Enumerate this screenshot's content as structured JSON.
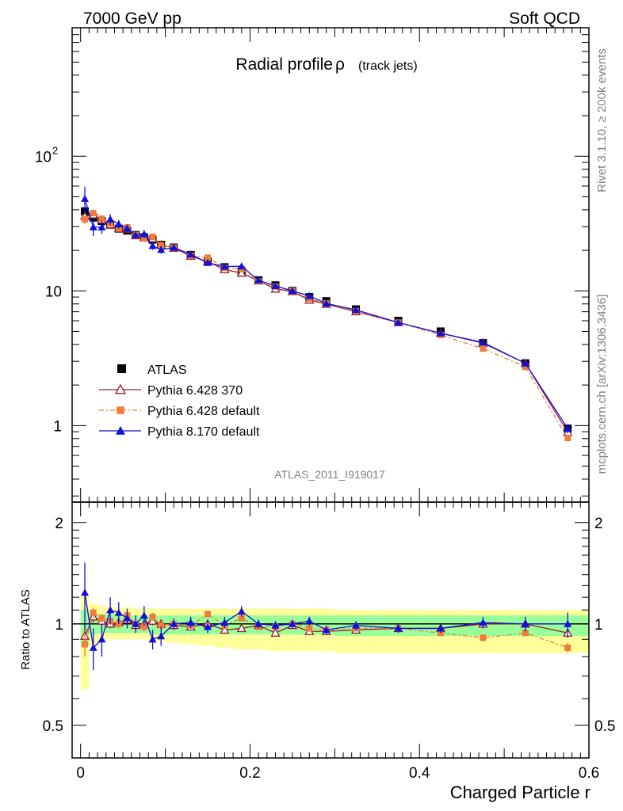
{
  "header": {
    "left": "7000 GeV pp",
    "right": "Soft QCD"
  },
  "side": {
    "top": "Rivet 3.1.10, ≥ 200k events",
    "bottom": "mcplots.cern.ch [arXiv:1306.3436]"
  },
  "chart_data": {
    "type": "line",
    "title": "Radial profile",
    "title_symbol": "ρ",
    "title_suffix": "(track jets)",
    "analysis_label": "ATLAS_2011_I919017",
    "xlabel": "Charged Particle r",
    "ylabel_ratio": "Ratio to ATLAS",
    "xlim": [
      -0.01,
      0.6
    ],
    "ylim_main": [
      0.27,
      900
    ],
    "ylim_ratio": [
      0.4,
      2.3
    ],
    "log_y_main": true,
    "log_y_ratio": true,
    "x_ticks": [
      "0",
      "0.2",
      "0.4",
      "0.6"
    ],
    "y_ticks_main": [
      "1",
      "10",
      "10^2"
    ],
    "y_ticks_ratio": [
      "0.5",
      "1",
      "2"
    ],
    "legend_position": "bottom-left",
    "x": [
      0.005,
      0.015,
      0.025,
      0.035,
      0.045,
      0.055,
      0.065,
      0.075,
      0.085,
      0.095,
      0.11,
      0.13,
      0.15,
      0.17,
      0.19,
      0.21,
      0.23,
      0.25,
      0.27,
      0.29,
      0.325,
      0.375,
      0.425,
      0.475,
      0.525,
      0.575
    ],
    "data": {
      "name": "ATLAS",
      "values": [
        39,
        35,
        33,
        31,
        29,
        28,
        26,
        25,
        24,
        22,
        21,
        18.5,
        16.5,
        15,
        14,
        12,
        11,
        10,
        9,
        8.4,
        7.3,
        6.0,
        5.0,
        4.1,
        2.9,
        0.95
      ],
      "yellow_band": [
        [
          0.64,
          1.22
        ],
        [
          0.86,
          1.15
        ],
        [
          0.88,
          1.13
        ],
        [
          0.9,
          1.12
        ],
        [
          0.9,
          1.12
        ],
        [
          0.9,
          1.12
        ],
        [
          0.9,
          1.11
        ],
        [
          0.9,
          1.11
        ],
        [
          0.89,
          1.11
        ],
        [
          0.89,
          1.11
        ],
        [
          0.88,
          1.11
        ],
        [
          0.87,
          1.11
        ],
        [
          0.86,
          1.11
        ],
        [
          0.85,
          1.11
        ],
        [
          0.84,
          1.11
        ],
        [
          0.84,
          1.11
        ],
        [
          0.83,
          1.11
        ],
        [
          0.83,
          1.11
        ],
        [
          0.83,
          1.11
        ],
        [
          0.83,
          1.11
        ],
        [
          0.82,
          1.1
        ],
        [
          0.82,
          1.1
        ],
        [
          0.82,
          1.1
        ],
        [
          0.82,
          1.1
        ],
        [
          0.82,
          1.1
        ],
        [
          0.82,
          1.1
        ]
      ],
      "green_band": [
        [
          0.86,
          1.1
        ],
        [
          0.93,
          1.07
        ],
        [
          0.94,
          1.07
        ],
        [
          0.94,
          1.07
        ],
        [
          0.94,
          1.07
        ],
        [
          0.94,
          1.07
        ],
        [
          0.94,
          1.06
        ],
        [
          0.94,
          1.06
        ],
        [
          0.93,
          1.06
        ],
        [
          0.93,
          1.06
        ],
        [
          0.93,
          1.06
        ],
        [
          0.93,
          1.06
        ],
        [
          0.93,
          1.06
        ],
        [
          0.93,
          1.06
        ],
        [
          0.93,
          1.06
        ],
        [
          0.93,
          1.06
        ],
        [
          0.93,
          1.06
        ],
        [
          0.93,
          1.06
        ],
        [
          0.93,
          1.06
        ],
        [
          0.93,
          1.06
        ],
        [
          0.92,
          1.06
        ],
        [
          0.92,
          1.06
        ],
        [
          0.92,
          1.06
        ],
        [
          0.92,
          1.06
        ],
        [
          0.92,
          1.06
        ],
        [
          0.92,
          1.06
        ]
      ]
    },
    "series": [
      {
        "name": "Pythia 6.428 370",
        "color": "#9a1b2b",
        "marker": "open-triangle",
        "ratio": [
          0.92,
          1.05,
          1.02,
          1.0,
          1.01,
          1.03,
          0.99,
          1.0,
          1.02,
          1.0,
          0.99,
          0.98,
          1.0,
          0.96,
          0.97,
          0.99,
          0.94,
          0.99,
          0.95,
          0.95,
          0.96,
          0.97,
          0.97,
          1.0,
          1.0,
          0.94
        ],
        "ratio_err": [
          0.06,
          0.04,
          0.03,
          0.03,
          0.03,
          0.03,
          0.03,
          0.03,
          0.03,
          0.03,
          0.02,
          0.02,
          0.02,
          0.02,
          0.02,
          0.02,
          0.02,
          0.02,
          0.02,
          0.02,
          0.02,
          0.02,
          0.02,
          0.02,
          0.02,
          0.03
        ]
      },
      {
        "name": "Pythia 6.428 default",
        "color": "#f07c3a",
        "marker": "filled-square",
        "ratio": [
          0.87,
          1.08,
          1.04,
          1.02,
          1.0,
          1.06,
          1.0,
          0.98,
          1.05,
          0.99,
          1.0,
          0.99,
          1.07,
          0.99,
          1.04,
          0.98,
          0.98,
          1.0,
          0.97,
          0.96,
          0.97,
          0.97,
          0.94,
          0.91,
          0.94,
          0.85
        ],
        "ratio_err": [
          0.07,
          0.04,
          0.03,
          0.03,
          0.03,
          0.03,
          0.03,
          0.03,
          0.03,
          0.03,
          0.02,
          0.02,
          0.02,
          0.02,
          0.02,
          0.02,
          0.02,
          0.02,
          0.02,
          0.02,
          0.02,
          0.02,
          0.02,
          0.02,
          0.02,
          0.03
        ]
      },
      {
        "name": "Pythia 8.170 default",
        "color": "#1010d8",
        "marker": "filled-triangle",
        "ratio": [
          1.24,
          0.85,
          0.9,
          1.1,
          1.08,
          1.04,
          1.0,
          1.06,
          0.9,
          0.92,
          1.0,
          1.01,
          0.98,
          1.01,
          1.09,
          1.0,
          0.99,
          1.0,
          1.02,
          0.96,
          0.99,
          0.97,
          0.97,
          1.01,
          1.0,
          1.0
        ],
        "ratio_err": [
          0.28,
          0.12,
          0.1,
          0.1,
          0.08,
          0.07,
          0.06,
          0.07,
          0.06,
          0.06,
          0.04,
          0.04,
          0.04,
          0.04,
          0.04,
          0.03,
          0.03,
          0.03,
          0.03,
          0.03,
          0.03,
          0.03,
          0.03,
          0.04,
          0.05,
          0.08
        ]
      }
    ]
  }
}
